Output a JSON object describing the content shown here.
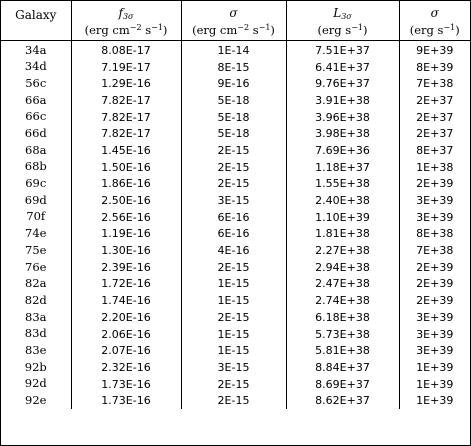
{
  "table": {
    "headers": [
      {
        "main": "Galaxy",
        "unit": ""
      },
      {
        "main_symbol": "f",
        "main_sub": "3σ",
        "unit_pre": "(erg cm",
        "unit_sup1": "−2",
        "unit_mid": " s",
        "unit_sup2": "−1",
        "unit_post": ")"
      },
      {
        "main_symbol": "σ",
        "main_sub": "",
        "unit_pre": "(erg cm",
        "unit_sup1": "−2",
        "unit_mid": " s",
        "unit_sup2": "−1",
        "unit_post": ")"
      },
      {
        "main_symbol": "L",
        "main_sub": "3σ",
        "unit_pre": "(erg s",
        "unit_sup1": "−1",
        "unit_mid": "",
        "unit_sup2": "",
        "unit_post": ")"
      },
      {
        "main_symbol": "σ",
        "main_sub": "",
        "unit_pre": "(erg s",
        "unit_sup1": "−1",
        "unit_mid": "",
        "unit_sup2": "",
        "unit_post": ")"
      }
    ],
    "rows": [
      [
        "34a",
        "8.08E-17",
        "1E-14",
        "7.51E+37",
        "9E+39"
      ],
      [
        "34d",
        "7.19E-17",
        "8E-15",
        "6.41E+37",
        "8E+39"
      ],
      [
        "56c",
        "1.29E-16",
        "9E-16",
        "9.76E+37",
        "7E+38"
      ],
      [
        "66a",
        "7.82E-17",
        "5E-18",
        "3.91E+38",
        "2E+37"
      ],
      [
        "66c",
        "7.82E-17",
        "5E-18",
        "3.96E+38",
        "2E+37"
      ],
      [
        "66d",
        "7.82E-17",
        "5E-18",
        "3.98E+38",
        "2E+37"
      ],
      [
        "68a",
        "1.45E-16",
        "2E-15",
        "7.69E+36",
        "8E+37"
      ],
      [
        "68b",
        "1.50E-16",
        "2E-15",
        "1.18E+37",
        "1E+38"
      ],
      [
        "69c",
        "1.86E-16",
        "2E-15",
        "1.55E+38",
        "2E+39"
      ],
      [
        "69d",
        "2.50E-16",
        "3E-15",
        "2.40E+38",
        "3E+39"
      ],
      [
        "70f",
        "2.56E-16",
        "6E-16",
        "1.10E+39",
        "3E+39"
      ],
      [
        "74e",
        "1.19E-16",
        "6E-16",
        "1.81E+38",
        "8E+38"
      ],
      [
        "75e",
        "1.30E-16",
        "4E-16",
        "2.27E+38",
        "7E+38"
      ],
      [
        "76e",
        "2.39E-16",
        "2E-15",
        "2.94E+38",
        "2E+39"
      ],
      [
        "82a",
        "1.72E-16",
        "1E-15",
        "2.47E+38",
        "2E+39"
      ],
      [
        "82d",
        "1.74E-16",
        "1E-15",
        "2.74E+38",
        "2E+39"
      ],
      [
        "83a",
        "2.20E-16",
        "2E-15",
        "6.18E+38",
        "3E+39"
      ],
      [
        "83d",
        "2.06E-16",
        "1E-15",
        "5.73E+38",
        "3E+39"
      ],
      [
        "83e",
        "2.07E-16",
        "1E-15",
        "5.81E+38",
        "3E+39"
      ],
      [
        "92b",
        "2.32E-16",
        "3E-15",
        "8.84E+37",
        "1E+39"
      ],
      [
        "92d",
        "1.73E-16",
        "2E-15",
        "8.69E+37",
        "1E+39"
      ],
      [
        "92e",
        "1.73E-16",
        "2E-15",
        "8.62E+37",
        "1E+39"
      ]
    ]
  }
}
